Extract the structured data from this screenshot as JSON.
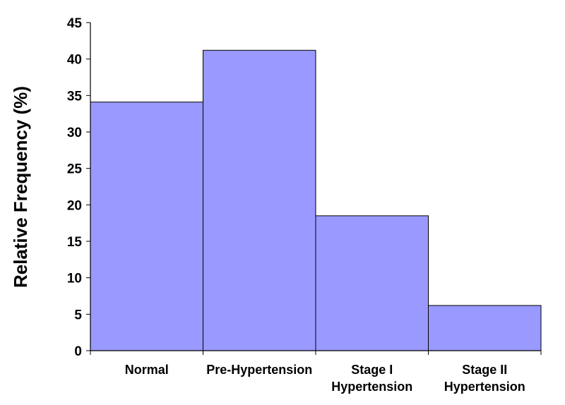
{
  "chart_data": {
    "type": "bar",
    "title": "",
    "xlabel": "",
    "ylabel": "Relative Frequency (%)",
    "categories": [
      [
        "Normal"
      ],
      [
        "Pre-Hypertension"
      ],
      [
        "Stage I",
        "Hypertension"
      ],
      [
        "Stage II",
        "Hypertension"
      ]
    ],
    "values": [
      34.1,
      41.2,
      18.5,
      6.2
    ],
    "ylim": [
      0,
      45
    ],
    "yticks": [
      "0",
      "5",
      "10",
      "15",
      "20",
      "25",
      "30",
      "35",
      "40",
      "45"
    ],
    "grid": false,
    "legend": "none",
    "colors": {
      "bar_fill": "#9999FF",
      "bar_stroke": "#000000",
      "axis": "#000000"
    }
  }
}
